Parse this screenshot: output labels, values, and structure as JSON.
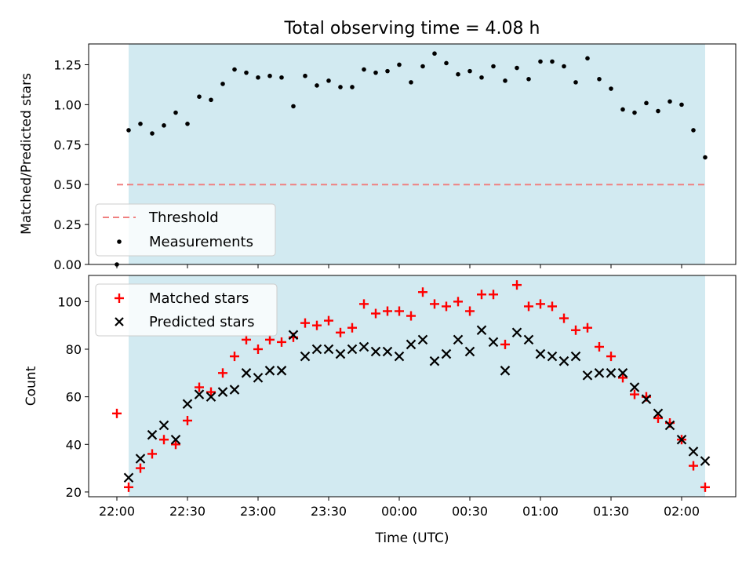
{
  "chart_data": [
    {
      "type": "scatter",
      "title": "Total observing time = 4.08 h",
      "xlabel": "",
      "ylabel": "Matched/Predicted stars",
      "ylim": [
        0,
        1.38
      ],
      "yticks": [
        "0.00",
        "0.25",
        "0.50",
        "0.75",
        "1.00",
        "1.25"
      ],
      "ytick_values": [
        0,
        0.25,
        0.5,
        0.75,
        1.0,
        1.25
      ],
      "observing_window_minutes": [
        5,
        250
      ],
      "threshold": {
        "name": "Threshold",
        "value": 0.5,
        "x_range_minutes": [
          0,
          250
        ],
        "color": "#f08080"
      },
      "legend_position": "lower left",
      "series": [
        {
          "name": "Measurements",
          "color": "#000000",
          "x_minutes": [
            0,
            5,
            10,
            15,
            20,
            25,
            30,
            35,
            40,
            45,
            50,
            55,
            60,
            65,
            70,
            75,
            80,
            85,
            90,
            95,
            100,
            105,
            110,
            115,
            120,
            125,
            130,
            135,
            140,
            145,
            150,
            155,
            160,
            165,
            170,
            175,
            180,
            185,
            190,
            195,
            200,
            205,
            210,
            215,
            220,
            225,
            230,
            235,
            240,
            245,
            250
          ],
          "values": [
            0.0,
            0.84,
            0.88,
            0.82,
            0.87,
            0.95,
            0.88,
            1.05,
            1.03,
            1.13,
            1.22,
            1.2,
            1.17,
            1.18,
            1.17,
            0.99,
            1.18,
            1.12,
            1.15,
            1.11,
            1.11,
            1.22,
            1.2,
            1.21,
            1.25,
            1.14,
            1.24,
            1.32,
            1.26,
            1.19,
            1.21,
            1.17,
            1.24,
            1.15,
            1.23,
            1.16,
            1.27,
            1.27,
            1.24,
            1.14,
            1.29,
            1.16,
            1.1,
            0.97,
            0.95,
            1.01,
            0.96,
            1.02,
            1.0,
            0.84,
            0.67
          ]
        }
      ]
    },
    {
      "type": "scatter",
      "title": "",
      "xlabel": "Time (UTC)",
      "ylabel": "Count",
      "ylim": [
        18,
        111
      ],
      "yticks": [
        "20",
        "40",
        "60",
        "80",
        "100"
      ],
      "ytick_values": [
        20,
        40,
        60,
        80,
        100
      ],
      "xlim_minutes": [
        -12,
        263
      ],
      "xticks": [
        "22:00",
        "22:30",
        "23:00",
        "23:30",
        "00:00",
        "00:30",
        "01:00",
        "01:30",
        "02:00"
      ],
      "xtick_minutes": [
        0,
        30,
        60,
        90,
        120,
        150,
        180,
        210,
        240
      ],
      "observing_window_minutes": [
        5,
        250
      ],
      "legend_position": "upper left",
      "series": [
        {
          "name": "Matched stars",
          "color": "#ff0000",
          "marker": "+",
          "x_minutes": [
            0,
            5,
            10,
            15,
            20,
            25,
            30,
            35,
            40,
            45,
            50,
            55,
            60,
            65,
            70,
            75,
            80,
            85,
            90,
            95,
            100,
            105,
            110,
            115,
            120,
            125,
            130,
            135,
            140,
            145,
            150,
            155,
            160,
            165,
            170,
            175,
            180,
            185,
            190,
            195,
            200,
            205,
            210,
            215,
            220,
            225,
            230,
            235,
            240,
            245,
            250
          ],
          "values": [
            53,
            22,
            30,
            36,
            42,
            40,
            50,
            64,
            62,
            70,
            77,
            84,
            80,
            84,
            83,
            85,
            91,
            90,
            92,
            87,
            89,
            99,
            95,
            96,
            96,
            94,
            104,
            99,
            98,
            100,
            96,
            103,
            103,
            82,
            107,
            98,
            99,
            98,
            93,
            88,
            89,
            81,
            77,
            68,
            61,
            60,
            51,
            49,
            42,
            31,
            22
          ]
        },
        {
          "name": "Predicted stars",
          "color": "#000000",
          "marker": "x",
          "x_minutes": [
            5,
            10,
            15,
            20,
            25,
            30,
            35,
            40,
            45,
            50,
            55,
            60,
            65,
            70,
            75,
            80,
            85,
            90,
            95,
            100,
            105,
            110,
            115,
            120,
            125,
            130,
            135,
            140,
            145,
            150,
            155,
            160,
            165,
            170,
            175,
            180,
            185,
            190,
            195,
            200,
            205,
            210,
            215,
            220,
            225,
            230,
            235,
            240,
            245,
            250
          ],
          "values": [
            26,
            34,
            44,
            48,
            42,
            57,
            61,
            60,
            62,
            63,
            70,
            68,
            71,
            71,
            86,
            77,
            80,
            80,
            78,
            80,
            81,
            79,
            79,
            77,
            82,
            84,
            75,
            78,
            84,
            79,
            88,
            83,
            71,
            87,
            84,
            78,
            77,
            75,
            77,
            69,
            70,
            70,
            70,
            64,
            59,
            53,
            48,
            42,
            37,
            33
          ]
        }
      ]
    }
  ]
}
